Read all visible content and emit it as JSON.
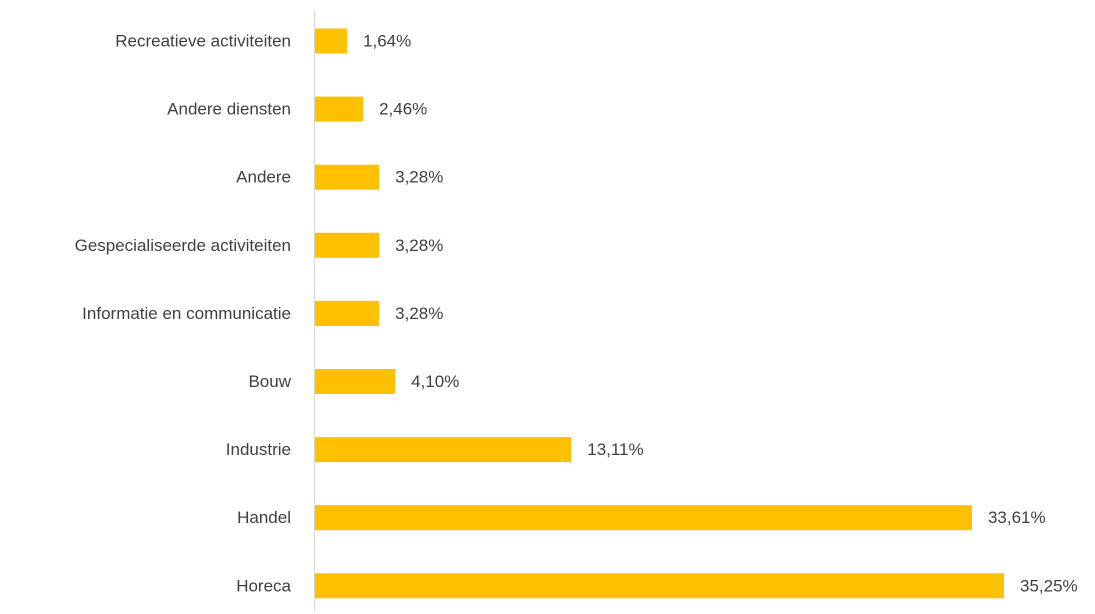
{
  "chart_data": {
    "type": "bar",
    "orientation": "horizontal",
    "categories": [
      "Recreatieve activiteiten",
      "Andere diensten",
      "Andere",
      "Gespecialiseerde activiteiten",
      "Informatie en communicatie",
      "Bouw",
      "Industrie",
      "Handel",
      "Horeca"
    ],
    "values": [
      1.64,
      2.46,
      3.28,
      3.28,
      3.28,
      4.1,
      13.11,
      33.61,
      35.25
    ],
    "value_labels": [
      "1,64%",
      "2,46%",
      "3,28%",
      "3,28%",
      "3,28%",
      "4,10%",
      "13,11%",
      "33,61%",
      "35,25%"
    ],
    "unit": "%",
    "bar_color": "#FFC000",
    "xlim": [
      0,
      35.25
    ],
    "grid": false,
    "legend": "none",
    "title": "",
    "xlabel": "",
    "ylabel": ""
  }
}
